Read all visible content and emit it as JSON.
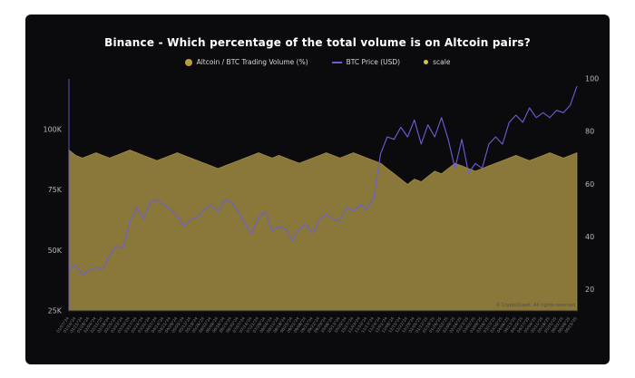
{
  "page": {
    "background": "#ffffff"
  },
  "card": {
    "background": "#0b0b0e"
  },
  "header": {
    "title": "Binance - Which percentage of the total volume is on Altcoin pairs?"
  },
  "legend": {
    "items": [
      {
        "label": "Altcoin / BTC Trading Volume (%)",
        "color": "#b89c3e",
        "swatch": "circle"
      },
      {
        "label": "BTC Price (USD)",
        "color": "#6b5fd6",
        "swatch": "line"
      },
      {
        "label": "scale",
        "color": "#d8c53f",
        "swatch": "dot"
      }
    ]
  },
  "watermark": "CryptoQuant",
  "footnote": "© CryptoQuant. All rights reserved",
  "chart_data": {
    "type": "area",
    "title": "Binance - Which percentage of the total volume is on Altcoin pairs?",
    "legend_position": "top",
    "grid": false,
    "x": [
      "01/07/'24",
      "01/14/'24",
      "01/21/'24",
      "01/28/'24",
      "02/04/'24",
      "02/11/'24",
      "02/18/'24",
      "02/25/'24",
      "03/03/'24",
      "03/10/'24",
      "03/17/'24",
      "03/24/'24",
      "03/31/'24",
      "04/07/'24",
      "04/14/'24",
      "04/21/'24",
      "04/28/'24",
      "05/05/'24",
      "05/12/'24",
      "05/19/'24",
      "05/26/'24",
      "06/02/'24",
      "06/09/'24",
      "06/16/'24",
      "06/23/'24",
      "06/30/'24",
      "07/07/'24",
      "07/14/'24",
      "07/21/'24",
      "07/28/'24",
      "08/04/'24",
      "08/11/'24",
      "08/18/'24",
      "08/25/'24",
      "09/01/'24",
      "09/08/'24",
      "09/15/'24",
      "09/22/'24",
      "09/29/'24",
      "10/06/'24",
      "10/13/'24",
      "10/20/'24",
      "10/27/'24",
      "11/03/'24",
      "11/10/'24",
      "11/17/'24",
      "11/24/'24",
      "12/01/'24",
      "12/08/'24",
      "12/15/'24",
      "12/22/'24",
      "12/29/'24",
      "01/05/'25",
      "01/12/'25",
      "01/19/'25",
      "01/26/'25",
      "02/02/'25",
      "02/09/'25",
      "02/16/'25",
      "02/23/'25",
      "03/02/'25",
      "03/09/'25",
      "03/16/'25",
      "03/23/'25",
      "03/30/'25",
      "04/06/'25",
      "04/13/'25",
      "04/20/'25",
      "04/27/'25",
      "05/04/'25",
      "05/11/'25",
      "05/18/'25",
      "05/25/'25",
      "06/01/'25",
      "06/08/'25",
      "06/15/'25"
    ],
    "series": [
      {
        "name": "Altcoin / BTC Trading Volume (%)",
        "type": "area",
        "axis": "right",
        "color": "#8a783a",
        "values": [
          73,
          71,
          70,
          71,
          72,
          71,
          70,
          71,
          72,
          73,
          72,
          71,
          70,
          69,
          70,
          71,
          72,
          71,
          70,
          69,
          68,
          67,
          66,
          67,
          68,
          69,
          70,
          71,
          72,
          71,
          70,
          71,
          70,
          69,
          68,
          69,
          70,
          71,
          72,
          71,
          70,
          71,
          72,
          71,
          70,
          69,
          68,
          66,
          64,
          62,
          60,
          62,
          61,
          63,
          65,
          64,
          66,
          68,
          67,
          66,
          65,
          66,
          67,
          68,
          69,
          70,
          71,
          70,
          69,
          70,
          71,
          72,
          71,
          70,
          71,
          72
        ]
      },
      {
        "name": "BTC Price (USD)",
        "type": "line",
        "axis": "left",
        "color": "#6b5fd6",
        "values": [
          42,
          44,
          40,
          42,
          43,
          42,
          48,
          52,
          51,
          62,
          68,
          63,
          70,
          71,
          69,
          67,
          64,
          60,
          63,
          64,
          67,
          69,
          66,
          71,
          70,
          66,
          61,
          57,
          64,
          66,
          58,
          60,
          59,
          54,
          59,
          61,
          57,
          63,
          65,
          63,
          62,
          68,
          66,
          69,
          67,
          72,
          90,
          97,
          96,
          101,
          97,
          104,
          94,
          102,
          97,
          105,
          96,
          84,
          96,
          82,
          86,
          84,
          94,
          97,
          94,
          103,
          106,
          103,
          109,
          105,
          107,
          105,
          108,
          107,
          110,
          118
        ]
      }
    ],
    "left_axis": {
      "label": "BTC Price (USD)",
      "unit": "K USD",
      "domain": [
        25,
        121
      ],
      "tick_values": [
        25,
        50,
        75,
        100
      ],
      "ticks": [
        "25K",
        "50K",
        "75K",
        "100K"
      ]
    },
    "right_axis": {
      "label": "Altcoin / BTC Trading Volume (%)",
      "domain": [
        12,
        100
      ],
      "tick_values": [
        20,
        40,
        60,
        80,
        100
      ],
      "ticks": [
        "20",
        "40",
        "60",
        "80",
        "100"
      ]
    }
  }
}
